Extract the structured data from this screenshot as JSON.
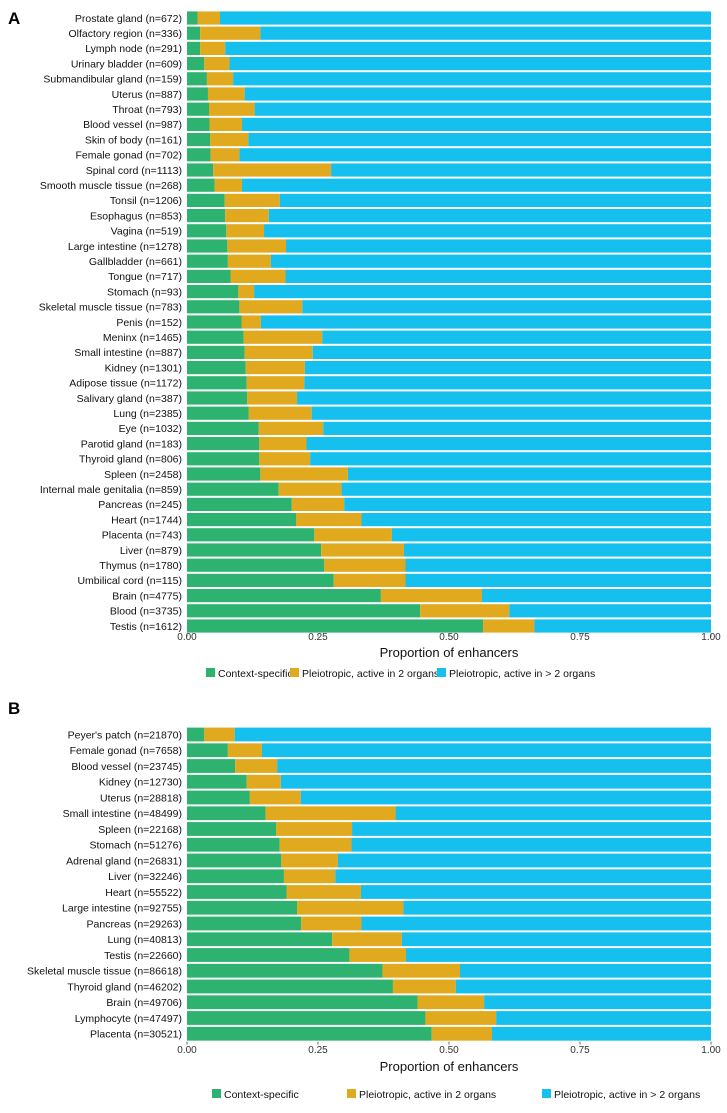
{
  "colors": {
    "context_specific": "#2db36f",
    "pleiotropic_2": "#e0a91e",
    "pleiotropic_gt2": "#15c0ef"
  },
  "chart_data": [
    {
      "panel": "A",
      "type": "bar",
      "orientation": "horizontal",
      "stacked": true,
      "xlabel": "Proportion of enhancers",
      "xlim": [
        0,
        1
      ],
      "xticks": [
        "0.00",
        "0.25",
        "0.50",
        "0.75",
        "1.00"
      ],
      "legend": [
        "Context-specific",
        "Pleiotropic, active in 2 organs",
        "Pleiotropic, active in > 2 organs"
      ],
      "legend_position": "bottom",
      "categories": [
        "Prostate gland  (n=672)",
        "Olfactory region  (n=336)",
        "Lymph node  (n=291)",
        "Urinary bladder  (n=609)",
        "Submandibular gland  (n=159)",
        "Uterus  (n=887)",
        "Throat  (n=793)",
        "Blood vessel  (n=987)",
        "Skin of body  (n=161)",
        "Female gonad  (n=702)",
        "Spinal cord  (n=1113)",
        "Smooth muscle tissue  (n=268)",
        "Tonsil  (n=1206)",
        "Esophagus  (n=853)",
        "Vagina  (n=519)",
        "Large intestine  (n=1278)",
        "Gallbladder  (n=661)",
        "Tongue  (n=717)",
        "Stomach  (n=93)",
        "Skeletal muscle tissue  (n=783)",
        "Penis  (n=152)",
        "Meninx  (n=1465)",
        "Small intestine  (n=887)",
        "Kidney  (n=1301)",
        "Adipose tissue  (n=1172)",
        "Salivary gland  (n=387)",
        "Lung  (n=2385)",
        "Eye  (n=1032)",
        "Parotid gland  (n=183)",
        "Thyroid gland  (n=806)",
        "Spleen  (n=2458)",
        "Internal male genitalia  (n=859)",
        "Pancreas  (n=245)",
        "Heart  (n=1744)",
        "Placenta  (n=743)",
        "Liver  (n=879)",
        "Thymus  (n=1780)",
        "Umbilical cord  (n=115)",
        "Brain  (n=4775)",
        "Blood  (n=3735)",
        "Testis  (n=1612)"
      ],
      "series": [
        {
          "name": "Context-specific",
          "values": [
            0.02,
            0.025,
            0.025,
            0.033,
            0.038,
            0.04,
            0.042,
            0.043,
            0.044,
            0.045,
            0.05,
            0.053,
            0.072,
            0.073,
            0.075,
            0.077,
            0.078,
            0.083,
            0.098,
            0.1,
            0.104,
            0.108,
            0.11,
            0.112,
            0.114,
            0.115,
            0.118,
            0.137,
            0.138,
            0.138,
            0.14,
            0.175,
            0.2,
            0.208,
            0.243,
            0.256,
            0.262,
            0.28,
            0.37,
            0.445,
            0.565
          ]
        },
        {
          "name": "Pleiotropic, active in 2 organs",
          "values": [
            0.043,
            0.115,
            0.048,
            0.048,
            0.05,
            0.07,
            0.087,
            0.062,
            0.073,
            0.055,
            0.225,
            0.052,
            0.105,
            0.083,
            0.072,
            0.112,
            0.082,
            0.105,
            0.03,
            0.12,
            0.037,
            0.15,
            0.13,
            0.113,
            0.11,
            0.095,
            0.12,
            0.123,
            0.09,
            0.097,
            0.167,
            0.12,
            0.1,
            0.125,
            0.148,
            0.158,
            0.155,
            0.137,
            0.193,
            0.17,
            0.098
          ]
        },
        {
          "name": "Pleiotropic, active in > 2 organs",
          "values": [
            0.937,
            0.86,
            0.927,
            0.919,
            0.912,
            0.89,
            0.871,
            0.895,
            0.883,
            0.9,
            0.725,
            0.895,
            0.823,
            0.844,
            0.853,
            0.811,
            0.84,
            0.812,
            0.872,
            0.78,
            0.859,
            0.742,
            0.76,
            0.775,
            0.776,
            0.79,
            0.762,
            0.74,
            0.772,
            0.765,
            0.693,
            0.705,
            0.7,
            0.667,
            0.609,
            0.586,
            0.583,
            0.583,
            0.437,
            0.385,
            0.337
          ]
        }
      ]
    },
    {
      "panel": "B",
      "type": "bar",
      "orientation": "horizontal",
      "stacked": true,
      "xlabel": "Proportion of enhancers",
      "xlim": [
        0,
        1
      ],
      "xticks": [
        "0.00",
        "0.25",
        "0.50",
        "0.75",
        "1.00"
      ],
      "legend": [
        "Context-specific",
        "Pleiotropic, active in 2 organs",
        "Pleiotropic, active in > 2 organs"
      ],
      "legend_position": "bottom",
      "categories": [
        "Peyer's patch  (n=21870)",
        "Female gonad  (n=7658)",
        "Blood vessel  (n=23745)",
        "Kidney  (n=12730)",
        "Uterus  (n=28818)",
        "Small intestine  (n=48499)",
        "Spleen  (n=22168)",
        "Stomach  (n=51276)",
        "Adrenal gland  (n=26831)",
        "Liver  (n=32246)",
        "Heart  (n=55522)",
        "Large intestine  (n=92755)",
        "Pancreas  (n=29263)",
        "Lung  (n=40813)",
        "Testis  (n=22660)",
        "Skeletal muscle tissue  (n=86618)",
        "Thyroid gland  (n=46202)",
        "Brain  (n=49706)",
        "Lymphocyte  (n=47497)",
        "Placenta  (n=30521)"
      ],
      "series": [
        {
          "name": "Context-specific",
          "values": [
            0.033,
            0.078,
            0.092,
            0.114,
            0.12,
            0.15,
            0.17,
            0.177,
            0.18,
            0.185,
            0.19,
            0.21,
            0.218,
            0.277,
            0.31,
            0.373,
            0.393,
            0.44,
            0.455,
            0.467
          ]
        },
        {
          "name": "Pleiotropic, active in 2 organs",
          "values": [
            0.058,
            0.065,
            0.08,
            0.065,
            0.097,
            0.248,
            0.145,
            0.137,
            0.108,
            0.098,
            0.142,
            0.203,
            0.115,
            0.133,
            0.108,
            0.148,
            0.12,
            0.127,
            0.135,
            0.115
          ]
        },
        {
          "name": "Pleiotropic, active in > 2 organs",
          "values": [
            0.909,
            0.857,
            0.828,
            0.821,
            0.783,
            0.602,
            0.685,
            0.686,
            0.712,
            0.717,
            0.668,
            0.587,
            0.667,
            0.59,
            0.582,
            0.479,
            0.487,
            0.433,
            0.41,
            0.418
          ]
        }
      ]
    }
  ]
}
